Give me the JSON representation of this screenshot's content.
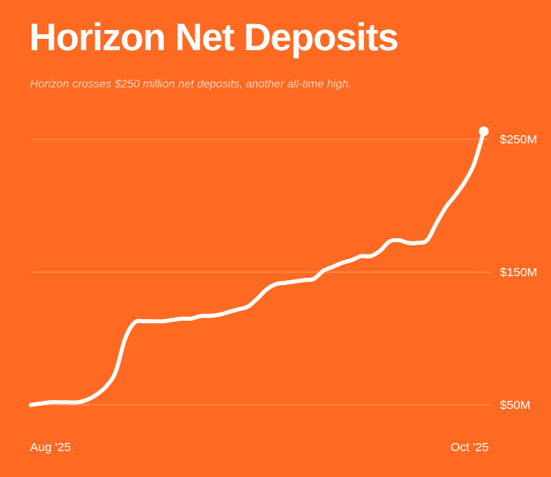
{
  "title": "Horizon Net Deposits",
  "subtitle": "Horizon crosses $250 million net deposits, another all-time high.",
  "colors": {
    "background": "#FF6A23",
    "line": "#FFFFFF",
    "grid": "#FF9A66",
    "subtitle": "#FFD0B5"
  },
  "chart_data": {
    "type": "line",
    "title": "Horizon Net Deposits",
    "subtitle": "Horizon crosses $250 million net deposits, another all-time high.",
    "xlabel": "",
    "ylabel": "",
    "x_tick_labels": [
      "Aug '25",
      "Oct '25"
    ],
    "y_ticks": [
      {
        "value": 50,
        "label": "$50M"
      },
      {
        "value": 150,
        "label": "$150M"
      },
      {
        "value": 250,
        "label": "$250M"
      }
    ],
    "ylim": [
      50,
      260
    ],
    "grid": true,
    "legend": "none",
    "end_marker": true,
    "series": [
      {
        "values": [
          50,
          51,
          52,
          52,
          52,
          52,
          54,
          58,
          64,
          75,
          100,
          112,
          113,
          113,
          113,
          114,
          115,
          115,
          117,
          117,
          118,
          120,
          122,
          124,
          130,
          137,
          141,
          142,
          143,
          144,
          145,
          151,
          154,
          157,
          159,
          162,
          162,
          166,
          173,
          174,
          172,
          172,
          174,
          187,
          199,
          208,
          218,
          232,
          256
        ]
      }
    ]
  }
}
